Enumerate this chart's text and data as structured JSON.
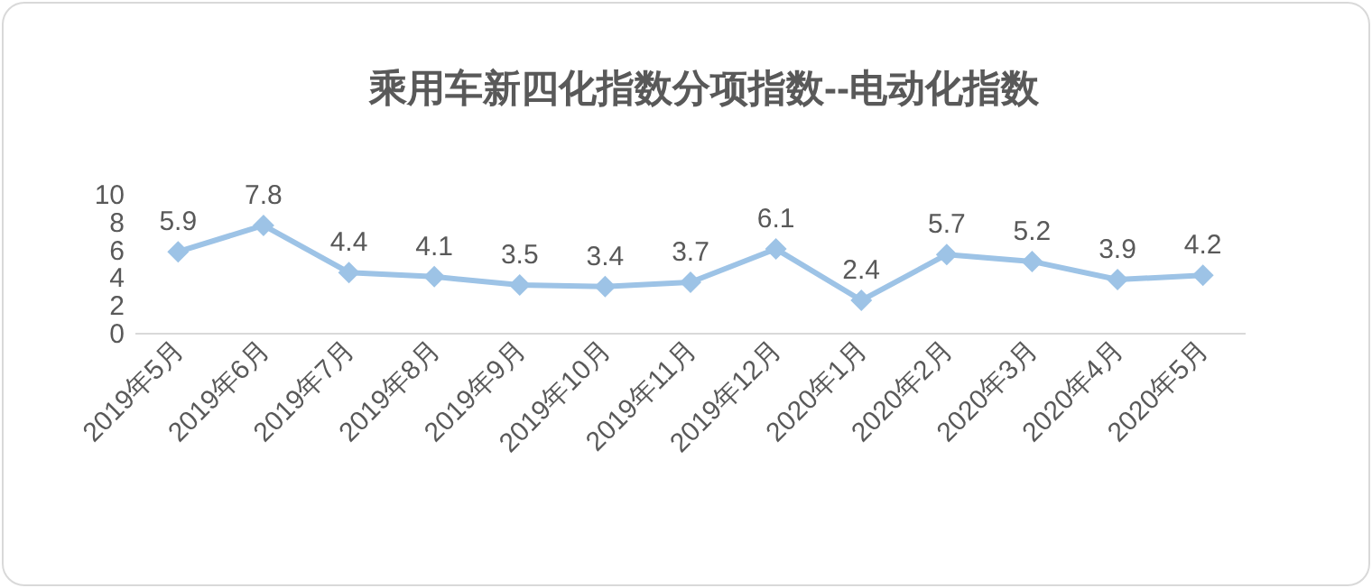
{
  "chart_data": {
    "type": "line",
    "title": "乘用车新四化指数分项指数--电动化指数",
    "categories": [
      "2019年5月",
      "2019年6月",
      "2019年7月",
      "2019年8月",
      "2019年9月",
      "2019年10月",
      "2019年11月",
      "2019年12月",
      "2020年1月",
      "2020年2月",
      "2020年3月",
      "2020年4月",
      "2020年5月"
    ],
    "values": [
      5.9,
      7.8,
      4.4,
      4.1,
      3.5,
      3.4,
      3.7,
      6.1,
      2.4,
      5.7,
      5.2,
      3.9,
      4.2
    ],
    "color": "#9dc3e6",
    "ylim": [
      0,
      10
    ],
    "yticks": [
      0,
      2,
      4,
      6,
      8,
      10
    ],
    "marker": "diamond",
    "data_labels": true
  }
}
